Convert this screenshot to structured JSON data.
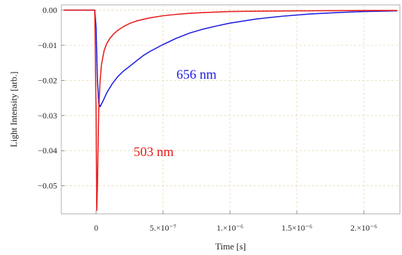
{
  "chart_data": {
    "type": "line",
    "title": "",
    "xlabel": "Time [s]",
    "ylabel": "Light Intensity [arb.]",
    "xlim": [
      -2.6e-07,
      2.27e-06
    ],
    "ylim": [
      -0.058,
      0.0015
    ],
    "grid": true,
    "x_ticks": [
      {
        "value": 0,
        "label": "0"
      },
      {
        "value": 5e-07,
        "label": "5.×10⁻⁷"
      },
      {
        "value": 1e-06,
        "label": "1.×10⁻⁶"
      },
      {
        "value": 1.5e-06,
        "label": "1.5×10⁻⁶"
      },
      {
        "value": 2e-06,
        "label": "2.×10⁻⁶"
      }
    ],
    "y_ticks": [
      {
        "value": 0,
        "label": "0.00"
      },
      {
        "value": -0.01,
        "label": "−0.01"
      },
      {
        "value": -0.02,
        "label": "−0.02"
      },
      {
        "value": -0.03,
        "label": "−0.03"
      },
      {
        "value": -0.04,
        "label": "−0.04"
      },
      {
        "value": -0.05,
        "label": "−0.05"
      }
    ],
    "series": [
      {
        "name": "656 nm",
        "color": "#1f1fe0",
        "x": [
          -2.4e-07,
          -1e-07,
          -1e-08,
          0,
          1e-08,
          2e-08,
          3e-08,
          5e-08,
          8e-08,
          1.2e-07,
          1.6e-07,
          2e-07,
          2.5e-07,
          3e-07,
          3.5e-07,
          4e-07,
          5e-07,
          6e-07,
          7e-07,
          8e-07,
          9e-07,
          1e-06,
          1.2e-06,
          1.4e-06,
          1.6e-06,
          1.8e-06,
          2e-06,
          2.25e-06
        ],
        "y": [
          0.0,
          0.0,
          0.0,
          -0.005,
          -0.02,
          -0.0265,
          -0.0275,
          -0.026,
          -0.0235,
          -0.021,
          -0.019,
          -0.0175,
          -0.016,
          -0.0145,
          -0.013,
          -0.0118,
          -0.0098,
          -0.008,
          -0.0065,
          -0.0054,
          -0.0045,
          -0.0037,
          -0.0025,
          -0.0017,
          -0.0011,
          -0.0007,
          -0.0004,
          -0.0002
        ]
      },
      {
        "name": "503 nm",
        "color": "#e81c1c",
        "x": [
          -2.4e-07,
          -1e-07,
          -1e-08,
          0,
          5e-09,
          1e-08,
          1.5e-08,
          2e-08,
          3e-08,
          4e-08,
          6e-08,
          8e-08,
          1e-07,
          1.3e-07,
          1.6e-07,
          2e-07,
          2.5e-07,
          3e-07,
          4e-07,
          5e-07,
          6e-07,
          7e-07,
          8e-07,
          1e-06,
          1.2e-06,
          1.5e-06,
          2e-06,
          2.25e-06
        ],
        "y": [
          0.0,
          0.0,
          0.0,
          -0.03,
          -0.057,
          -0.05,
          -0.038,
          -0.028,
          -0.02,
          -0.0155,
          -0.0115,
          -0.0095,
          -0.0082,
          -0.0068,
          -0.0058,
          -0.0048,
          -0.0038,
          -0.0031,
          -0.0022,
          -0.0016,
          -0.0012,
          -0.0009,
          -0.0007,
          -0.0004,
          -0.0003,
          -0.0002,
          -0.0001,
          -0.0001
        ]
      }
    ],
    "annotations": [
      {
        "text": "656 nm",
        "color": "#1f1fe0",
        "x": 7.5e-07,
        "y": -0.0195
      },
      {
        "text": "503 nm",
        "color": "#e81c1c",
        "x": 4.3e-07,
        "y": -0.0415
      }
    ]
  }
}
